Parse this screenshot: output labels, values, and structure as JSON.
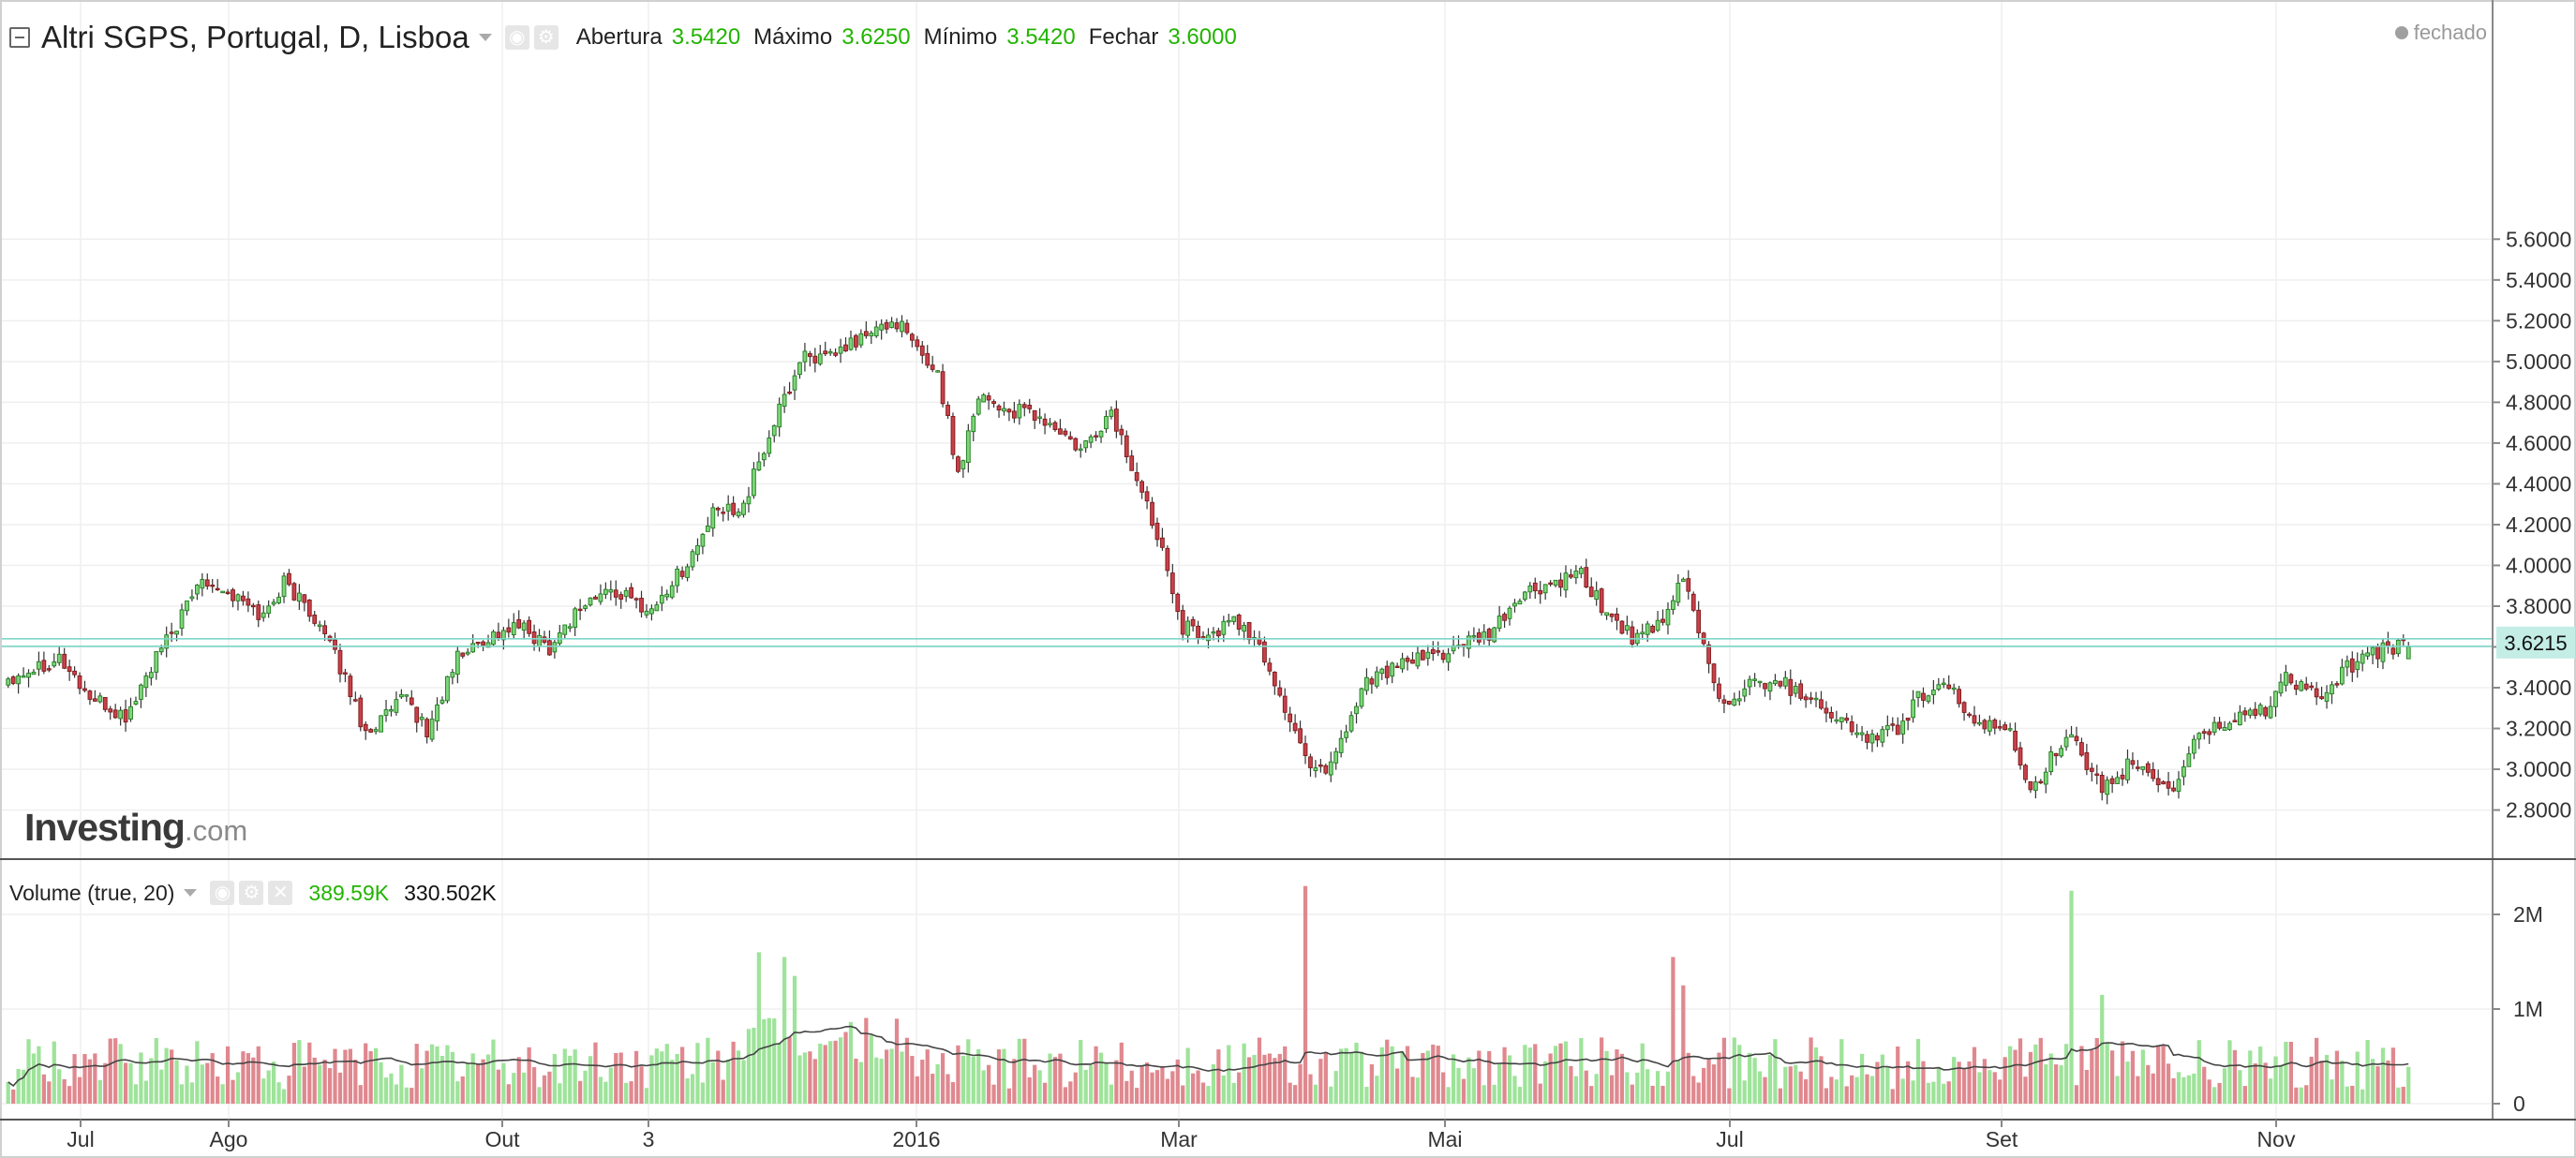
{
  "header": {
    "title": "Altri SGPS, Portugal, D, Lisboa",
    "open_label": "Abertura",
    "open_value": "3.5420",
    "high_label": "Máximo",
    "high_value": "3.6250",
    "low_label": "Mínimo",
    "low_value": "3.5420",
    "close_label": "Fechar",
    "close_value": "3.6000",
    "status": "fechado"
  },
  "logo": {
    "brand": "Investing",
    "suffix": ".com"
  },
  "volume_panel": {
    "title": "Volume (true, 20)",
    "value": "389.59K",
    "ma_value": "330.502K"
  },
  "colors": {
    "up": "#7fd57a",
    "up_border": "#1f7a1f",
    "down": "#c9404a",
    "down_border": "#7a1a1a",
    "vol_up": "#9ee39a",
    "vol_down": "#e0888f",
    "price_line": "#7dd7c9",
    "price_tag": "#c4ede6"
  },
  "chart_data": [
    {
      "type": "candlestick",
      "title": "Altri SGPS, Portugal, D, Lisboa",
      "x_labels": [
        "Jul",
        "Ago",
        "Out",
        "3",
        "2016",
        "Mar",
        "Mai",
        "Jul",
        "Set",
        "Nov"
      ],
      "y_ticks": [
        "5.6000",
        "5.4000",
        "5.2000",
        "5.0000",
        "4.8000",
        "4.6000",
        "4.4000",
        "4.2000",
        "4.0000",
        "3.8000",
        "3.6000",
        "3.4000",
        "3.2000",
        "3.0000",
        "2.8000"
      ],
      "ylim": [
        2.7,
        5.62
      ],
      "current_price": "3.6215",
      "last_bar": {
        "open": 3.542,
        "high": 3.625,
        "low": 3.542,
        "close": 3.6
      },
      "close_path": [
        [
          0,
          3.45
        ],
        [
          10,
          3.55
        ],
        [
          16,
          3.35
        ],
        [
          23,
          3.25
        ],
        [
          28,
          3.5
        ],
        [
          34,
          3.75
        ],
        [
          38,
          3.95
        ],
        [
          44,
          3.85
        ],
        [
          50,
          3.75
        ],
        [
          54,
          3.92
        ],
        [
          60,
          3.75
        ],
        [
          66,
          3.45
        ],
        [
          70,
          3.18
        ],
        [
          78,
          3.35
        ],
        [
          82,
          3.18
        ],
        [
          88,
          3.55
        ],
        [
          94,
          3.65
        ],
        [
          100,
          3.7
        ],
        [
          106,
          3.6
        ],
        [
          112,
          3.8
        ],
        [
          118,
          3.88
        ],
        [
          126,
          3.78
        ],
        [
          134,
          4.05
        ],
        [
          138,
          4.25
        ],
        [
          144,
          4.3
        ],
        [
          150,
          4.7
        ],
        [
          156,
          5.05
        ],
        [
          160,
          5.0
        ],
        [
          166,
          5.1
        ],
        [
          170,
          5.15
        ],
        [
          174,
          5.2
        ],
        [
          178,
          5.05
        ],
        [
          182,
          4.95
        ],
        [
          186,
          4.45
        ],
        [
          190,
          4.85
        ],
        [
          196,
          4.75
        ],
        [
          200,
          4.75
        ],
        [
          206,
          4.65
        ],
        [
          210,
          4.55
        ],
        [
          216,
          4.75
        ],
        [
          222,
          4.35
        ],
        [
          226,
          4.1
        ],
        [
          230,
          3.7
        ],
        [
          236,
          3.65
        ],
        [
          240,
          3.75
        ],
        [
          246,
          3.55
        ],
        [
          250,
          3.3
        ],
        [
          254,
          3.05
        ],
        [
          258,
          3.0
        ],
        [
          262,
          3.2
        ],
        [
          266,
          3.45
        ],
        [
          272,
          3.5
        ],
        [
          278,
          3.55
        ],
        [
          284,
          3.6
        ],
        [
          290,
          3.65
        ],
        [
          296,
          3.85
        ],
        [
          302,
          3.9
        ],
        [
          308,
          3.95
        ],
        [
          312,
          3.8
        ],
        [
          318,
          3.65
        ],
        [
          324,
          3.7
        ],
        [
          328,
          3.95
        ],
        [
          332,
          3.6
        ],
        [
          336,
          3.3
        ],
        [
          340,
          3.4
        ],
        [
          346,
          3.45
        ],
        [
          350,
          3.38
        ],
        [
          354,
          3.35
        ],
        [
          358,
          3.25
        ],
        [
          364,
          3.15
        ],
        [
          370,
          3.2
        ],
        [
          374,
          3.35
        ],
        [
          378,
          3.4
        ],
        [
          382,
          3.35
        ],
        [
          386,
          3.2
        ],
        [
          392,
          3.2
        ],
        [
          396,
          2.9
        ],
        [
          400,
          3.05
        ],
        [
          404,
          3.15
        ],
        [
          408,
          2.95
        ],
        [
          412,
          2.9
        ],
        [
          416,
          3.05
        ],
        [
          420,
          2.95
        ],
        [
          424,
          2.9
        ],
        [
          428,
          3.15
        ],
        [
          432,
          3.2
        ],
        [
          436,
          3.25
        ],
        [
          442,
          3.3
        ],
        [
          446,
          3.45
        ],
        [
          450,
          3.4
        ],
        [
          454,
          3.35
        ],
        [
          458,
          3.5
        ],
        [
          462,
          3.55
        ],
        [
          466,
          3.6
        ],
        [
          470,
          3.6
        ]
      ],
      "volume": {
        "y_ticks": [
          "2M",
          "1M",
          "0"
        ],
        "ylim": [
          0,
          2500000
        ],
        "spikes": [
          {
            "bar": 254,
            "volume": 2300000,
            "direction": "down"
          },
          {
            "bar": 326,
            "volume": 1550000,
            "direction": "down"
          },
          {
            "bar": 328,
            "volume": 1250000,
            "direction": "down"
          },
          {
            "bar": 404,
            "volume": 2250000,
            "direction": "up"
          },
          {
            "bar": 410,
            "volume": 1150000,
            "direction": "up"
          },
          {
            "bar": 147,
            "volume": 1600000,
            "direction": "up"
          },
          {
            "bar": 152,
            "volume": 1550000,
            "direction": "up"
          },
          {
            "bar": 154,
            "volume": 1350000,
            "direction": "up"
          }
        ]
      }
    }
  ]
}
